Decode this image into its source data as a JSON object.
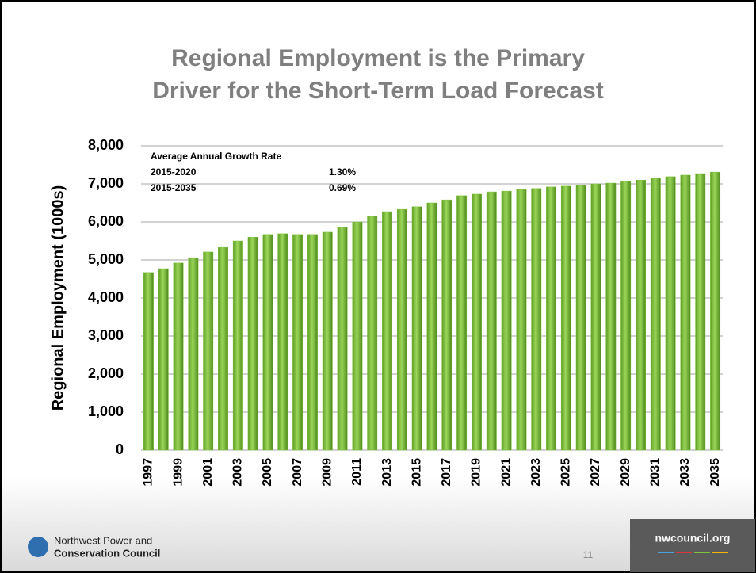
{
  "chart_data": {
    "type": "bar",
    "title": [
      "Regional Employment is the Primary",
      "Driver for the Short-Term Load Forecast"
    ],
    "y_label": "Regional Employment (1000s)",
    "categories": [
      "1997",
      null,
      "1999",
      null,
      "2001",
      null,
      "2003",
      null,
      "2005",
      null,
      "2007",
      null,
      "2009",
      null,
      "2011",
      null,
      "2013",
      null,
      "2015",
      null,
      "2017",
      null,
      "2019",
      null,
      "2021",
      null,
      "2023",
      null,
      "2025",
      null,
      "2027",
      null,
      "2029",
      null,
      "2031",
      null,
      "2033",
      null,
      "2035"
    ],
    "values": [
      4670,
      4770,
      4920,
      5060,
      5210,
      5330,
      5500,
      5600,
      5670,
      5690,
      5670,
      5670,
      5730,
      5850,
      6000,
      6150,
      6270,
      6330,
      6400,
      6500,
      6580,
      6690,
      6730,
      6790,
      6810,
      6850,
      6880,
      6920,
      6940,
      6960,
      7000,
      7020,
      7060,
      7100,
      7150,
      7190,
      7230,
      7270,
      7310
    ],
    "color": "#7dc33a",
    "ylim": [
      0,
      8000
    ],
    "yticks": [
      0,
      {
        "value": 1000,
        "label": "1,000"
      },
      {
        "value": 2000,
        "label": "2,000"
      },
      {
        "value": 3000,
        "label": "3,000"
      },
      {
        "value": 4000,
        "label": "4,000"
      },
      {
        "value": 5000,
        "label": "5,000"
      },
      {
        "value": 6000,
        "label": "6,000"
      },
      {
        "value": 7000,
        "label": "7,000"
      },
      {
        "value": 8000,
        "label": "8,000"
      }
    ],
    "grid": true,
    "annotation": {
      "title": "Average Annual Growth Rate",
      "rows": [
        [
          "2015-2020",
          "1.30%"
        ],
        [
          "2015-2035",
          "0.69%"
        ]
      ]
    }
  },
  "footer": {
    "logo": [
      "Northwest Power and",
      "Conservation Council"
    ],
    "page": "11",
    "site": "nwcouncil.org"
  }
}
